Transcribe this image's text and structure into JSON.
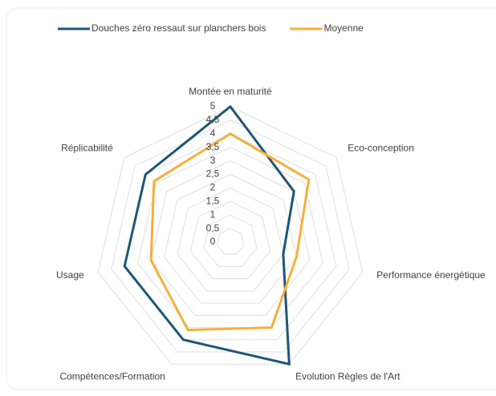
{
  "chart_data": {
    "type": "radar",
    "categories": [
      "Montée en maturité",
      "Eco-conception",
      "Performance énergétique",
      "Evolution Règles de l'Art",
      "Compétences/Formation",
      "Usage",
      "Réplicabilité"
    ],
    "series": [
      {
        "name": "Douches zéro ressaut sur planchers bois",
        "color": "#1d5677",
        "values": [
          5,
          3,
          2,
          5,
          4,
          4,
          4
        ]
      },
      {
        "name": "Moyenne",
        "color": "#f4b03a",
        "values": [
          4,
          3.7,
          2.5,
          3.5,
          3.6,
          3,
          3.6
        ]
      }
    ],
    "ylim": [
      0,
      5
    ],
    "yticks": [
      0,
      {
        "value": 0.5,
        "label": "0,5"
      },
      1,
      {
        "value": 1.5,
        "label": "1,5"
      },
      2,
      {
        "value": 2.5,
        "label": "2,5"
      },
      3,
      {
        "value": 3.5,
        "label": "3,5"
      },
      4,
      {
        "value": 4.5,
        "label": "4,5"
      },
      5
    ],
    "grid": true,
    "legend": "top"
  }
}
